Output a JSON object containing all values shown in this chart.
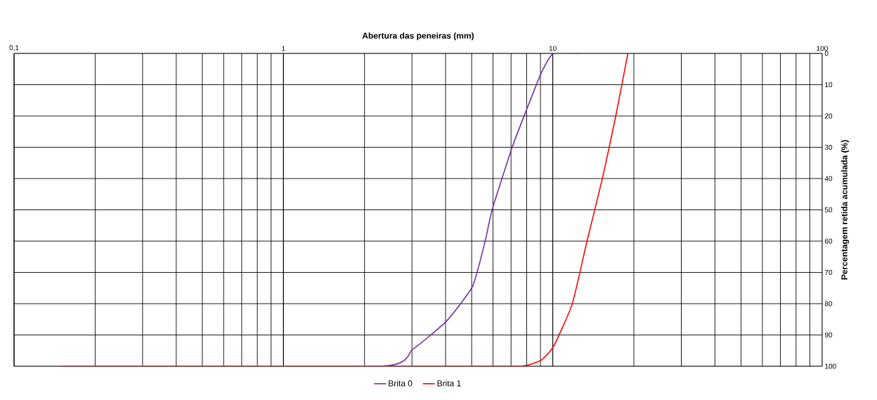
{
  "chart_data": {
    "type": "line",
    "xlabel": "Abertura das peneiras (mm)",
    "ylabel": "Percentagem retida acumulada (%)",
    "log": "x",
    "grid": true,
    "legend": "bottom",
    "marker": "none",
    "line_style": "solid",
    "tick_labels": "xy",
    "xlim": [
      0.1,
      100
    ],
    "xticks": [
      {
        "value": 0.1,
        "label": "0,1"
      },
      1,
      10,
      100
    ],
    "ylim": [
      100,
      0
    ],
    "yticks": [
      0,
      10,
      20,
      30,
      40,
      50,
      60,
      70,
      80,
      90,
      100
    ],
    "series": [
      {
        "name": "Brita 0",
        "color": "#7030a0",
        "x": [
          0.15,
          2.32,
          3.02,
          4.03,
          5.04,
          5.61,
          5.96,
          7.06,
          8.05,
          9.08,
          10.06,
          12.5
        ],
        "values": [
          100,
          100,
          94.6,
          85.6,
          74.4,
          60,
          49.9,
          30.1,
          17.3,
          6.1,
          0,
          0
        ]
      },
      {
        "name": "Brita 1",
        "color": "#ff0000",
        "x": [
          0.15,
          6,
          7.9,
          9.08,
          10.06,
          11.8,
          13.4,
          15.3,
          17.1,
          19.0
        ],
        "values": [
          100,
          100,
          99.8,
          98,
          93.7,
          80.2,
          60,
          39.8,
          20.4,
          0
        ]
      }
    ]
  }
}
